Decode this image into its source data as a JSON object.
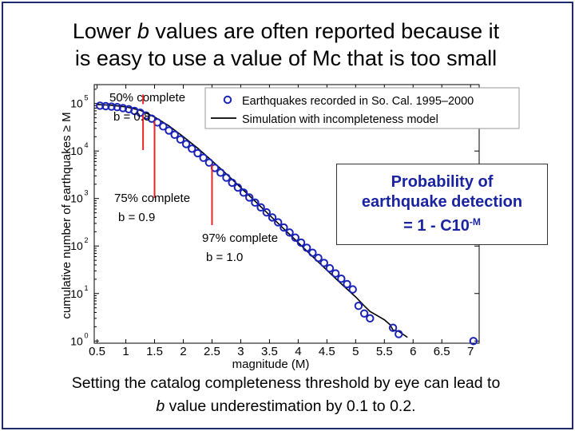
{
  "slide": {
    "title_line1_pre": "Lower ",
    "title_line1_italic": "b",
    "title_line1_post": " values are often reported because it",
    "title_line2": "is easy to use a value of Mc that is too small",
    "caption_line1": "Setting the catalog completeness threshold by eye can lead to",
    "caption_line2_italic": "b",
    "caption_line2_post": " value underestimation by 0.1 to 0.2.",
    "probability_box": {
      "line1": "Probability of",
      "line2": "earthquake detection",
      "line3_main": "= 1 - C10",
      "line3_sup": "-M"
    }
  },
  "colors": {
    "points": "#1a23b5",
    "simulation": "#000000",
    "markers": "#e8262a",
    "box_text": "#1a23a0"
  },
  "chart_data": {
    "type": "scatter",
    "xlabel": "magnitude (M)",
    "ylabel": "cumulative number of earthquakes ≥ M",
    "xlim": [
      0.45,
      7.15
    ],
    "ylim": [
      0.9,
      250000
    ],
    "y_scale": "log",
    "x_ticks": [
      "0.5",
      "1",
      "1.5",
      "2",
      "2.5",
      "3",
      "3.5",
      "4",
      "4.5",
      "5",
      "5.5",
      "6",
      "6.5",
      "7"
    ],
    "y_ticks": [
      {
        "base": "10",
        "exp": "0",
        "value": 1
      },
      {
        "base": "10",
        "exp": "1",
        "value": 10
      },
      {
        "base": "10",
        "exp": "2",
        "value": 100
      },
      {
        "base": "10",
        "exp": "3",
        "value": 1000
      },
      {
        "base": "10",
        "exp": "4",
        "value": 10000
      },
      {
        "base": "10",
        "exp": "5",
        "value": 100000
      }
    ],
    "legend": {
      "position": "top-right",
      "entries": [
        {
          "label": "Earthquakes recorded in So. Cal. 1995–2000",
          "kind": "marker"
        },
        {
          "label": "Simulation with incompleteness model",
          "kind": "line"
        }
      ]
    },
    "series": [
      {
        "name": "Earthquakes recorded in So. Cal. 1995–2000",
        "kind": "points",
        "x": [
          0.55,
          0.65,
          0.75,
          0.85,
          0.95,
          1.05,
          1.15,
          1.25,
          1.35,
          1.45,
          1.55,
          1.65,
          1.75,
          1.85,
          1.95,
          2.05,
          2.15,
          2.25,
          2.35,
          2.45,
          2.55,
          2.65,
          2.75,
          2.85,
          2.95,
          3.05,
          3.15,
          3.25,
          3.35,
          3.45,
          3.55,
          3.65,
          3.75,
          3.85,
          3.95,
          4.05,
          4.15,
          4.25,
          4.35,
          4.45,
          4.55,
          4.65,
          4.75,
          4.85,
          4.95,
          5.05,
          5.15,
          5.25,
          5.65,
          5.75,
          7.05
        ],
        "y": [
          90000,
          88000,
          86000,
          84000,
          80000,
          76000,
          70000,
          64000,
          56000,
          48000,
          40000,
          33000,
          27000,
          22000,
          17500,
          14000,
          11200,
          9000,
          7200,
          5700,
          4400,
          3500,
          2750,
          2150,
          1700,
          1330,
          1050,
          820,
          650,
          510,
          400,
          315,
          245,
          192,
          150,
          118,
          92,
          72,
          56,
          44,
          34,
          26.5,
          20.5,
          15.8,
          12.2,
          5.5,
          3.8,
          3.0,
          1.9,
          1.4,
          1.0
        ]
      },
      {
        "name": "Simulation with incompleteness model",
        "kind": "line",
        "x": [
          0.5,
          0.75,
          1.0,
          1.25,
          1.5,
          1.75,
          2.0,
          2.25,
          2.5,
          2.75,
          3.0,
          3.25,
          3.5,
          3.75,
          4.0,
          4.25,
          4.5,
          4.75,
          5.0,
          5.15,
          5.25,
          5.4,
          5.5,
          5.6,
          5.65,
          5.75,
          5.9
        ],
        "y": [
          95000,
          92000,
          85000,
          72000,
          52000,
          34000,
          20000,
          11500,
          6200,
          3300,
          1700,
          880,
          450,
          230,
          118,
          60,
          31,
          16,
          8.5,
          5.5,
          4.2,
          3.3,
          2.8,
          2.2,
          1.7,
          1.6,
          1.2
        ]
      }
    ],
    "annotations": [
      {
        "label": "50% complete",
        "b_label": "b = 0.8",
        "magnitude": 1.3
      },
      {
        "label": "75% complete",
        "b_label": "b = 0.9",
        "magnitude": 1.5
      },
      {
        "label": "97% complete",
        "b_label": "b = 1.0",
        "magnitude": 2.5
      }
    ]
  }
}
